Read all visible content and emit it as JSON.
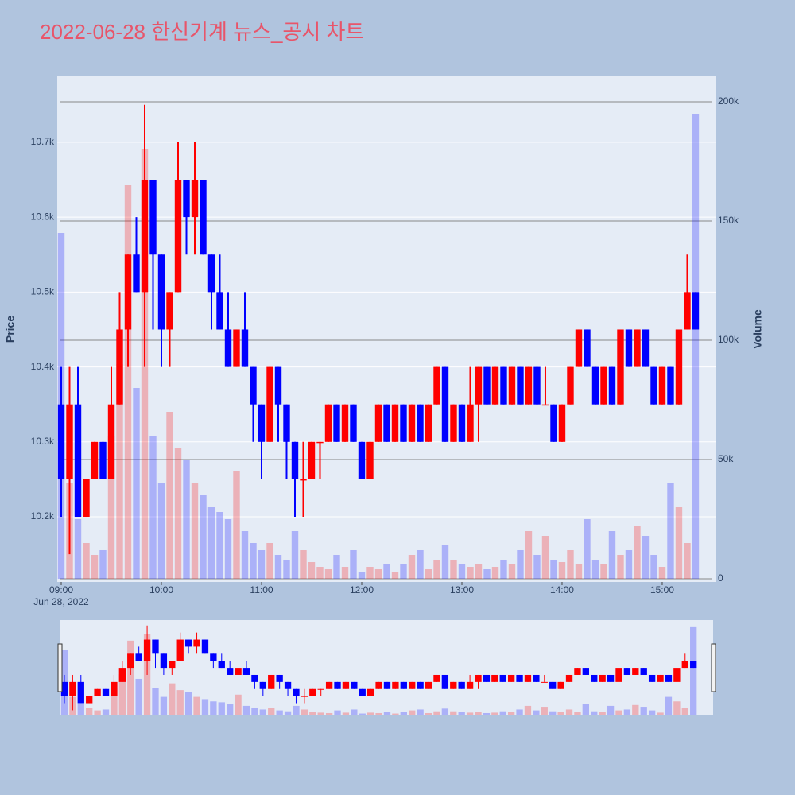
{
  "chart_data": {
    "type": "candlestick",
    "title": "2022-06-28 한신기계 뉴스_공시 차트",
    "y_label": "Price",
    "y2_label": "Volume",
    "x_date_label": "Jun 28, 2022",
    "increasing_color": "#ff0000",
    "decreasing_color": "#0000ff",
    "x": [
      "2022-06-28 09:00",
      "2022-06-28 09:05",
      "2022-06-28 09:10",
      "2022-06-28 09:15",
      "2022-06-28 09:20",
      "2022-06-28 09:25",
      "2022-06-28 09:30",
      "2022-06-28 09:35",
      "2022-06-28 09:40",
      "2022-06-28 09:45",
      "2022-06-28 09:50",
      "2022-06-28 09:55",
      "2022-06-28 10:00",
      "2022-06-28 10:05",
      "2022-06-28 10:10",
      "2022-06-28 10:15",
      "2022-06-28 10:20",
      "2022-06-28 10:25",
      "2022-06-28 10:30",
      "2022-06-28 10:35",
      "2022-06-28 10:40",
      "2022-06-28 10:45",
      "2022-06-28 10:50",
      "2022-06-28 10:55",
      "2022-06-28 11:00",
      "2022-06-28 11:05",
      "2022-06-28 11:10",
      "2022-06-28 11:15",
      "2022-06-28 11:20",
      "2022-06-28 11:25",
      "2022-06-28 11:30",
      "2022-06-28 11:35",
      "2022-06-28 11:40",
      "2022-06-28 11:45",
      "2022-06-28 11:50",
      "2022-06-28 11:55",
      "2022-06-28 12:00",
      "2022-06-28 12:05",
      "2022-06-28 12:10",
      "2022-06-28 12:15",
      "2022-06-28 12:20",
      "2022-06-28 12:25",
      "2022-06-28 12:30",
      "2022-06-28 12:35",
      "2022-06-28 12:40",
      "2022-06-28 12:45",
      "2022-06-28 12:50",
      "2022-06-28 12:55",
      "2022-06-28 13:00",
      "2022-06-28 13:05",
      "2022-06-28 13:10",
      "2022-06-28 13:15",
      "2022-06-28 13:20",
      "2022-06-28 13:25",
      "2022-06-28 13:30",
      "2022-06-28 13:35",
      "2022-06-28 13:40",
      "2022-06-28 13:45",
      "2022-06-28 13:50",
      "2022-06-28 13:55",
      "2022-06-28 14:00",
      "2022-06-28 14:05",
      "2022-06-28 14:10",
      "2022-06-28 14:15",
      "2022-06-28 14:20",
      "2022-06-28 14:25",
      "2022-06-28 14:30",
      "2022-06-28 14:35",
      "2022-06-28 14:40",
      "2022-06-28 14:45",
      "2022-06-28 14:50",
      "2022-06-28 14:55",
      "2022-06-28 15:00",
      "2022-06-28 15:05",
      "2022-06-28 15:10",
      "2022-06-28 15:15",
      "2022-06-28 15:20"
    ],
    "open": [
      10350,
      10250,
      10350,
      10200,
      10250,
      10300,
      10250,
      10350,
      10450,
      10550,
      10500,
      10650,
      10550,
      10450,
      10500,
      10650,
      10600,
      10650,
      10550,
      10500,
      10450,
      10400,
      10450,
      10400,
      10350,
      10300,
      10400,
      10350,
      10300,
      10250,
      10250,
      10300,
      10300,
      10350,
      10300,
      10350,
      10300,
      10250,
      10300,
      10350,
      10300,
      10350,
      10300,
      10350,
      10300,
      10350,
      10400,
      10300,
      10350,
      10300,
      10350,
      10400,
      10350,
      10400,
      10350,
      10400,
      10350,
      10400,
      10350,
      10350,
      10300,
      10350,
      10400,
      10450,
      10400,
      10350,
      10400,
      10350,
      10450,
      10400,
      10450,
      10400,
      10350,
      10400,
      10350,
      10450,
      10500
    ],
    "high": [
      10400,
      10400,
      10400,
      10250,
      10300,
      10300,
      10400,
      10500,
      10550,
      10600,
      10750,
      10650,
      10550,
      10500,
      10700,
      10650,
      10700,
      10650,
      10550,
      10550,
      10500,
      10450,
      10500,
      10400,
      10350,
      10400,
      10400,
      10350,
      10300,
      10300,
      10300,
      10300,
      10350,
      10350,
      10350,
      10350,
      10300,
      10300,
      10350,
      10350,
      10350,
      10350,
      10350,
      10350,
      10350,
      10400,
      10400,
      10350,
      10350,
      10400,
      10400,
      10400,
      10400,
      10400,
      10400,
      10400,
      10400,
      10400,
      10400,
      10350,
      10350,
      10400,
      10450,
      10450,
      10400,
      10400,
      10400,
      10450,
      10450,
      10450,
      10450,
      10400,
      10400,
      10400,
      10450,
      10550,
      10500
    ],
    "low": [
      10200,
      10150,
      10200,
      10200,
      10250,
      10250,
      10250,
      10350,
      10400,
      10500,
      10400,
      10450,
      10400,
      10400,
      10500,
      10550,
      10550,
      10550,
      10450,
      10450,
      10400,
      10400,
      10400,
      10300,
      10250,
      10300,
      10300,
      10250,
      10200,
      10200,
      10250,
      10250,
      10300,
      10300,
      10300,
      10300,
      10250,
      10250,
      10300,
      10300,
      10300,
      10300,
      10300,
      10300,
      10300,
      10350,
      10300,
      10300,
      10300,
      10300,
      10300,
      10350,
      10350,
      10350,
      10350,
      10350,
      10350,
      10350,
      10350,
      10300,
      10300,
      10350,
      10400,
      10400,
      10350,
      10350,
      10350,
      10350,
      10400,
      10400,
      10400,
      10350,
      10350,
      10350,
      10350,
      10450,
      10450
    ],
    "close": [
      10250,
      10350,
      10200,
      10250,
      10300,
      10250,
      10350,
      10450,
      10550,
      10500,
      10650,
      10550,
      10450,
      10500,
      10650,
      10600,
      10650,
      10550,
      10500,
      10450,
      10400,
      10450,
      10400,
      10350,
      10300,
      10400,
      10350,
      10300,
      10250,
      10250,
      10300,
      10300,
      10350,
      10300,
      10350,
      10300,
      10250,
      10300,
      10350,
      10300,
      10350,
      10300,
      10350,
      10300,
      10350,
      10400,
      10300,
      10350,
      10300,
      10350,
      10400,
      10350,
      10400,
      10350,
      10400,
      10350,
      10400,
      10350,
      10350,
      10300,
      10350,
      10400,
      10450,
      10400,
      10350,
      10400,
      10350,
      10450,
      10400,
      10450,
      10400,
      10350,
      10400,
      10350,
      10450,
      10500,
      10450
    ],
    "volume": [
      145000,
      40000,
      25000,
      15000,
      10000,
      12000,
      60000,
      90000,
      165000,
      80000,
      180000,
      60000,
      40000,
      70000,
      55000,
      50000,
      40000,
      35000,
      30000,
      28000,
      25000,
      45000,
      20000,
      15000,
      12000,
      15000,
      10000,
      8000,
      20000,
      12000,
      7000,
      5000,
      4000,
      10000,
      5000,
      12000,
      3000,
      5000,
      4000,
      6000,
      3000,
      6000,
      10000,
      12000,
      4000,
      8000,
      14000,
      8000,
      6000,
      5000,
      6000,
      4000,
      5000,
      8000,
      6000,
      12000,
      20000,
      10000,
      18000,
      8000,
      7000,
      12000,
      6000,
      25000,
      8000,
      6000,
      20000,
      10000,
      12000,
      22000,
      18000,
      10000,
      5000,
      40000,
      30000,
      15000,
      195000
    ],
    "xlim": [
      "2022-06-28 08:57:37",
      "2022-06-28 15:31:55"
    ],
    "xticks": [
      {
        "value": "2022-06-28 09:00",
        "label": "09:00"
      },
      {
        "value": "2022-06-28 10:00",
        "label": "10:00"
      },
      {
        "value": "2022-06-28 11:00",
        "label": "11:00"
      },
      {
        "value": "2022-06-28 12:00",
        "label": "12:00"
      },
      {
        "value": "2022-06-28 13:00",
        "label": "13:00"
      },
      {
        "value": "2022-06-28 14:00",
        "label": "14:00"
      },
      {
        "value": "2022-06-28 15:00",
        "label": "15:00"
      }
    ],
    "ylim": [
      10113,
      10788
    ],
    "yticks": [
      {
        "value": 10200,
        "label": "10.2k"
      },
      {
        "value": 10300,
        "label": "10.3k"
      },
      {
        "value": 10400,
        "label": "10.4k"
      },
      {
        "value": 10500,
        "label": "10.5k"
      },
      {
        "value": 10600,
        "label": "10.6k"
      },
      {
        "value": 10700,
        "label": "10.7k"
      }
    ],
    "y2lim": [
      -1333,
      210667
    ],
    "y2ticks": [
      0,
      {
        "value": 50000,
        "label": "50k"
      },
      {
        "value": 100000,
        "label": "100k"
      },
      {
        "value": 150000,
        "label": "150k"
      },
      {
        "value": 200000,
        "label": "200k"
      }
    ]
  }
}
